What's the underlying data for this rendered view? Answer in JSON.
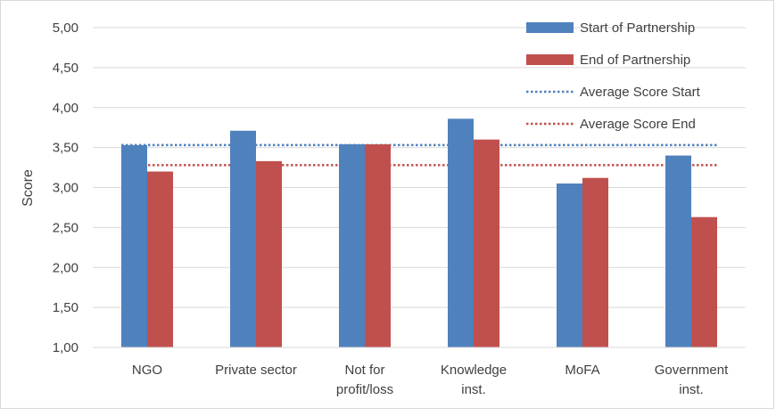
{
  "chart_data": {
    "type": "bar",
    "categories": [
      "NGO",
      "Private sector",
      "Not for profit/loss",
      "Knowledge inst.",
      "MoFA",
      "Government inst."
    ],
    "category_lines": [
      [
        "NGO"
      ],
      [
        "Private sector"
      ],
      [
        "Not for",
        "profit/loss"
      ],
      [
        "Knowledge",
        "inst."
      ],
      [
        "MoFA"
      ],
      [
        "Government",
        "inst."
      ]
    ],
    "series": [
      {
        "name": "Start of Partnership",
        "values": [
          3.53,
          3.71,
          3.54,
          3.86,
          3.05,
          3.4
        ],
        "color": "#4F81BD"
      },
      {
        "name": "End of Partnership",
        "values": [
          3.2,
          3.33,
          3.54,
          3.6,
          3.12,
          2.63
        ],
        "color": "#C0504D"
      }
    ],
    "reference_lines": [
      {
        "name": "Average Score Start",
        "value": 3.53,
        "color": "#4F81BD",
        "style": "dotted"
      },
      {
        "name": "Average Score End",
        "value": 3.28,
        "color": "#C0504D",
        "style": "dotted"
      }
    ],
    "ylabel": "Score",
    "xlabel": "",
    "title": "",
    "ylim": [
      1.0,
      5.0
    ],
    "yticks": [
      "1,00",
      "1,50",
      "2,00",
      "2,50",
      "3,00",
      "3,50",
      "4,00",
      "4,50",
      "5,00"
    ],
    "grid": true,
    "legend_position": "top-right",
    "frame_color": "#D9D9D9",
    "grid_color": "#D9D9D9"
  }
}
